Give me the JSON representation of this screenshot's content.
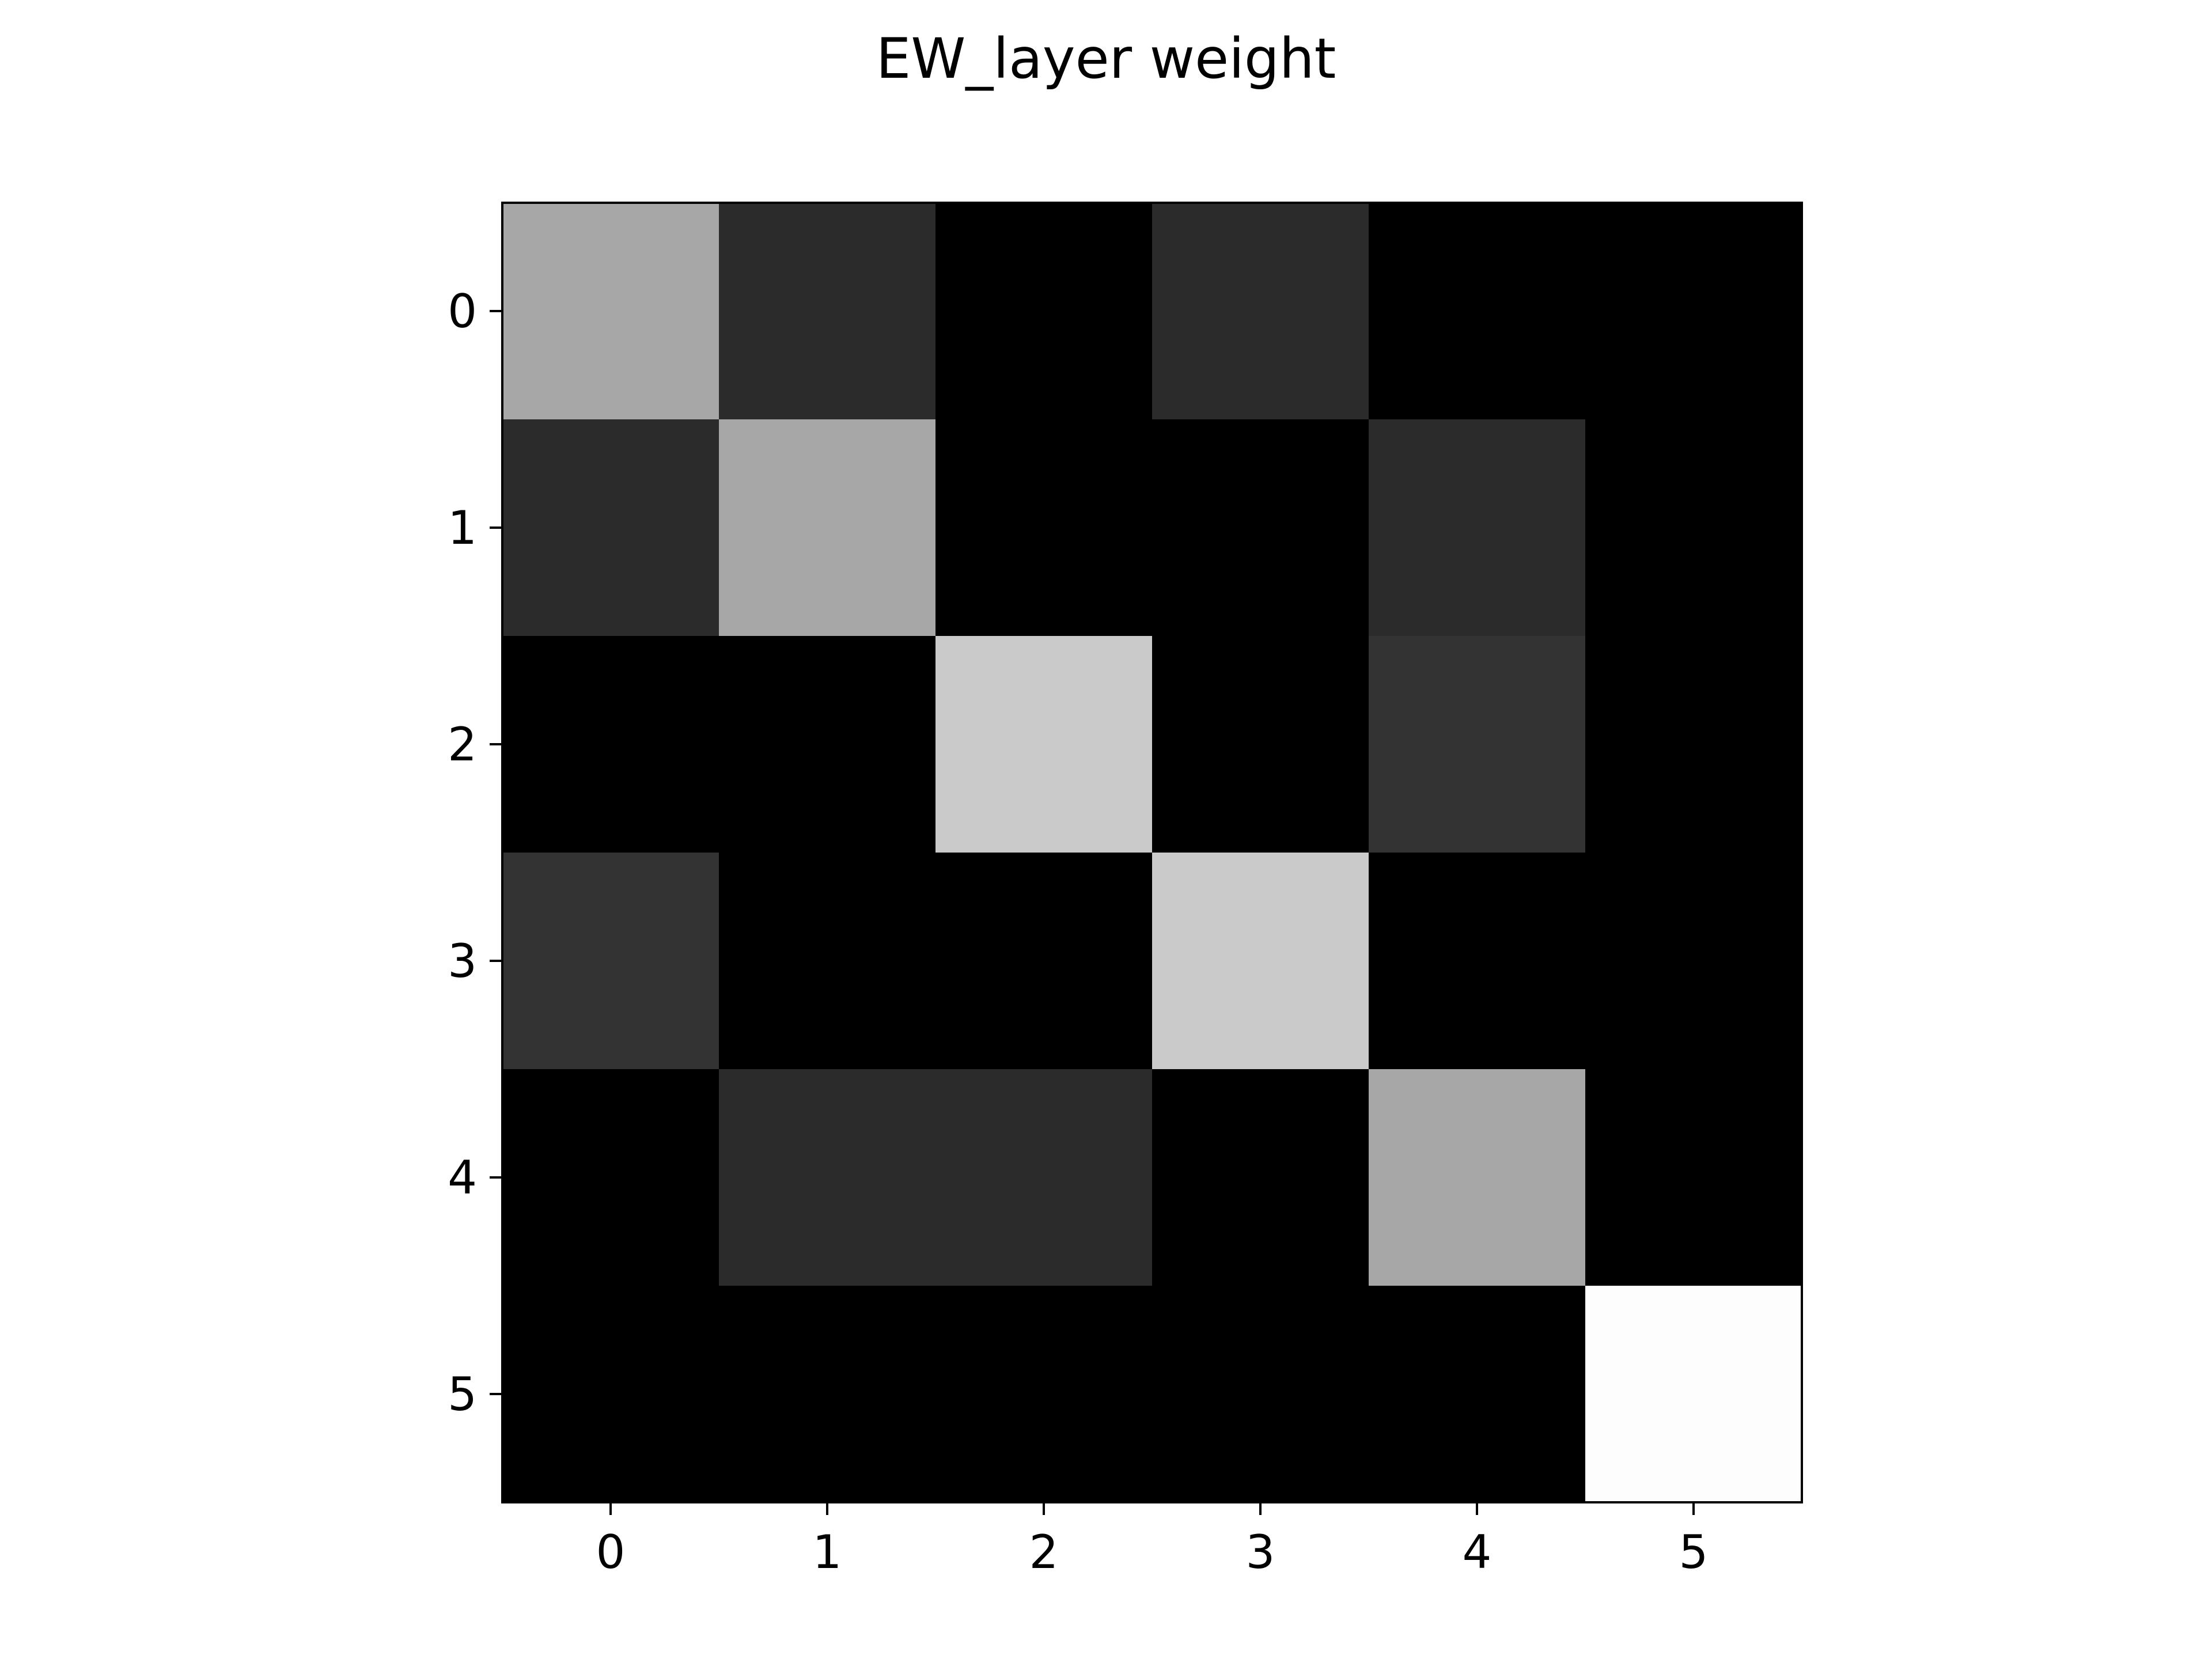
{
  "chart_data": {
    "type": "heatmap",
    "title": "EW_layer weight",
    "xlabel": "",
    "ylabel": "",
    "colormap": "gray",
    "x_ticks": [
      "0",
      "1",
      "2",
      "3",
      "4",
      "5"
    ],
    "y_ticks": [
      "0",
      "1",
      "2",
      "3",
      "4",
      "5"
    ],
    "xlim": [
      -0.5,
      5.5
    ],
    "ylim": [
      5.5,
      -0.5
    ],
    "vmin": 0,
    "vmax": 1,
    "values": [
      [
        0.66,
        0.17,
        0.0,
        0.17,
        0.0,
        0.0
      ],
      [
        0.17,
        0.66,
        0.0,
        0.0,
        0.17,
        0.0
      ],
      [
        0.0,
        0.0,
        0.8,
        0.0,
        0.2,
        0.0
      ],
      [
        0.2,
        0.0,
        0.0,
        0.8,
        0.0,
        0.0
      ],
      [
        0.0,
        0.17,
        0.17,
        0.0,
        0.66,
        0.0
      ],
      [
        0.0,
        0.0,
        0.0,
        0.0,
        0.0,
        1.0
      ]
    ],
    "grid": false,
    "legend": "none",
    "axis_color": "#000000"
  }
}
